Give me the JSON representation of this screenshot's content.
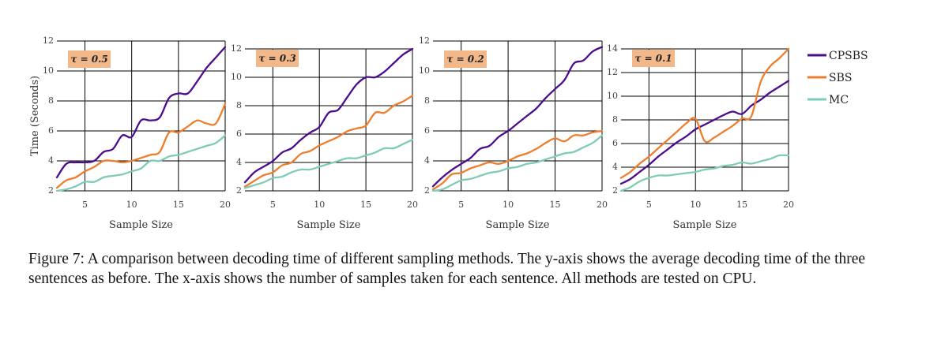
{
  "figure": {
    "caption": "Figure 7: A comparison between decoding time of different sampling methods. The y-axis shows the average decoding time of the three sentences as before. The x-axis shows the number of samples taken for each sentence. All methods are tested on CPU."
  },
  "colors": {
    "CPSBS": "#4b0c8e",
    "SBS": "#ee7d2c",
    "MC": "#7ecbb8",
    "tau_box": "#f2b88a"
  },
  "legend": [
    "CPSBS",
    "SBS",
    "MC"
  ],
  "chart_data": [
    {
      "type": "line",
      "tau_label": "τ = 0.5",
      "xlabel": "Sample Size",
      "ylabel": "Time (Seconds)",
      "xlim": [
        2,
        20
      ],
      "ylim": [
        2,
        12
      ],
      "xticks": [
        5,
        10,
        15,
        20
      ],
      "yticks": [
        2,
        4,
        6,
        8,
        10,
        12
      ],
      "x": [
        2,
        3,
        4,
        5,
        6,
        7,
        8,
        9,
        10,
        11,
        12,
        13,
        14,
        15,
        16,
        17,
        18,
        19,
        20
      ],
      "series": [
        {
          "name": "CPSBS",
          "values": [
            2.9,
            3.8,
            3.9,
            3.9,
            4.0,
            4.6,
            4.8,
            5.7,
            5.6,
            6.7,
            6.7,
            6.9,
            8.2,
            8.5,
            8.5,
            9.3,
            10.2,
            10.9,
            11.6
          ]
        },
        {
          "name": "SBS",
          "values": [
            2.2,
            2.7,
            2.9,
            3.3,
            3.6,
            4.0,
            4.0,
            3.9,
            4.0,
            4.2,
            4.4,
            4.6,
            5.9,
            5.9,
            6.3,
            6.7,
            6.5,
            6.5,
            7.8
          ]
        },
        {
          "name": "MC",
          "values": [
            2.0,
            2.1,
            2.3,
            2.6,
            2.6,
            2.9,
            3.0,
            3.1,
            3.3,
            3.5,
            4.0,
            4.0,
            4.3,
            4.4,
            4.6,
            4.8,
            5.0,
            5.2,
            5.7
          ]
        }
      ]
    },
    {
      "type": "line",
      "tau_label": "τ = 0.3",
      "xlabel": "Sample Size",
      "ylabel": "",
      "xlim": [
        2,
        20
      ],
      "ylim": [
        2,
        12
      ],
      "xticks": [
        5,
        10,
        15,
        20
      ],
      "yticks": [
        2,
        4,
        6,
        8,
        10,
        12
      ],
      "x": [
        2,
        3,
        4,
        5,
        6,
        7,
        8,
        9,
        10,
        11,
        12,
        13,
        14,
        15,
        16,
        17,
        18,
        19,
        20
      ],
      "series": [
        {
          "name": "CPSBS",
          "values": [
            2.6,
            3.3,
            3.7,
            4.1,
            4.7,
            5.0,
            5.6,
            6.1,
            6.5,
            7.5,
            7.7,
            8.6,
            9.5,
            10.0,
            10.0,
            10.4,
            11.0,
            11.6,
            12.0
          ]
        },
        {
          "name": "SBS",
          "values": [
            2.3,
            2.7,
            3.1,
            3.3,
            3.8,
            4.0,
            4.6,
            4.8,
            5.2,
            5.5,
            5.8,
            6.2,
            6.4,
            6.6,
            7.5,
            7.5,
            8.0,
            8.3,
            8.7
          ]
        },
        {
          "name": "MC",
          "values": [
            2.2,
            2.4,
            2.6,
            2.9,
            3.0,
            3.3,
            3.5,
            3.5,
            3.7,
            3.9,
            4.1,
            4.3,
            4.3,
            4.5,
            4.7,
            5.0,
            5.0,
            5.3,
            5.6
          ]
        }
      ]
    },
    {
      "type": "line",
      "tau_label": "τ = 0.2",
      "xlabel": "Sample Size",
      "ylabel": "",
      "xlim": [
        2,
        20
      ],
      "ylim": [
        2,
        12
      ],
      "xticks": [
        5,
        10,
        15,
        20
      ],
      "yticks": [
        2,
        4,
        6,
        8,
        10,
        12
      ],
      "x": [
        2,
        3,
        4,
        5,
        6,
        7,
        8,
        9,
        10,
        11,
        12,
        13,
        14,
        15,
        16,
        17,
        18,
        19,
        20
      ],
      "series": [
        {
          "name": "CPSBS",
          "values": [
            2.3,
            2.9,
            3.4,
            3.8,
            4.2,
            4.8,
            5.0,
            5.6,
            6.0,
            6.5,
            7.0,
            7.5,
            8.2,
            8.8,
            9.4,
            10.5,
            10.7,
            11.3,
            11.6
          ]
        },
        {
          "name": "SBS",
          "values": [
            2.1,
            2.5,
            3.1,
            3.2,
            3.5,
            3.7,
            3.9,
            3.8,
            4.0,
            4.3,
            4.5,
            4.8,
            5.2,
            5.5,
            5.3,
            5.7,
            5.7,
            5.9,
            6.0
          ]
        },
        {
          "name": "MC",
          "values": [
            2.0,
            2.1,
            2.4,
            2.7,
            2.8,
            3.0,
            3.2,
            3.3,
            3.5,
            3.6,
            3.8,
            3.9,
            4.1,
            4.3,
            4.5,
            4.6,
            4.9,
            5.2,
            5.7
          ]
        }
      ]
    },
    {
      "type": "line",
      "tau_label": "τ = 0.1",
      "xlabel": "Sample Size",
      "ylabel": "",
      "xlim": [
        2,
        20
      ],
      "ylim": [
        2,
        14
      ],
      "xticks": [
        5,
        10,
        15,
        20
      ],
      "yticks": [
        2,
        4,
        6,
        8,
        10,
        12,
        14
      ],
      "x": [
        2,
        3,
        4,
        5,
        6,
        7,
        8,
        9,
        10,
        11,
        12,
        13,
        14,
        15,
        16,
        17,
        18,
        19,
        20
      ],
      "series": [
        {
          "name": "CPSBS",
          "values": [
            2.6,
            3.0,
            3.6,
            4.2,
            4.9,
            5.5,
            6.1,
            6.6,
            7.2,
            7.6,
            8.0,
            8.4,
            8.7,
            8.5,
            9.2,
            9.7,
            10.3,
            10.8,
            11.3
          ]
        },
        {
          "name": "SBS",
          "values": [
            3.1,
            3.6,
            4.3,
            4.9,
            5.6,
            6.3,
            7.0,
            7.7,
            8.1,
            6.2,
            6.5,
            7.0,
            7.5,
            8.1,
            8.3,
            11.2,
            12.5,
            13.2,
            14.0
          ]
        },
        {
          "name": "MC",
          "values": [
            2.0,
            2.3,
            2.8,
            3.1,
            3.3,
            3.3,
            3.4,
            3.5,
            3.6,
            3.8,
            3.9,
            4.1,
            4.2,
            4.4,
            4.3,
            4.5,
            4.7,
            5.0,
            5.0
          ]
        }
      ]
    }
  ]
}
